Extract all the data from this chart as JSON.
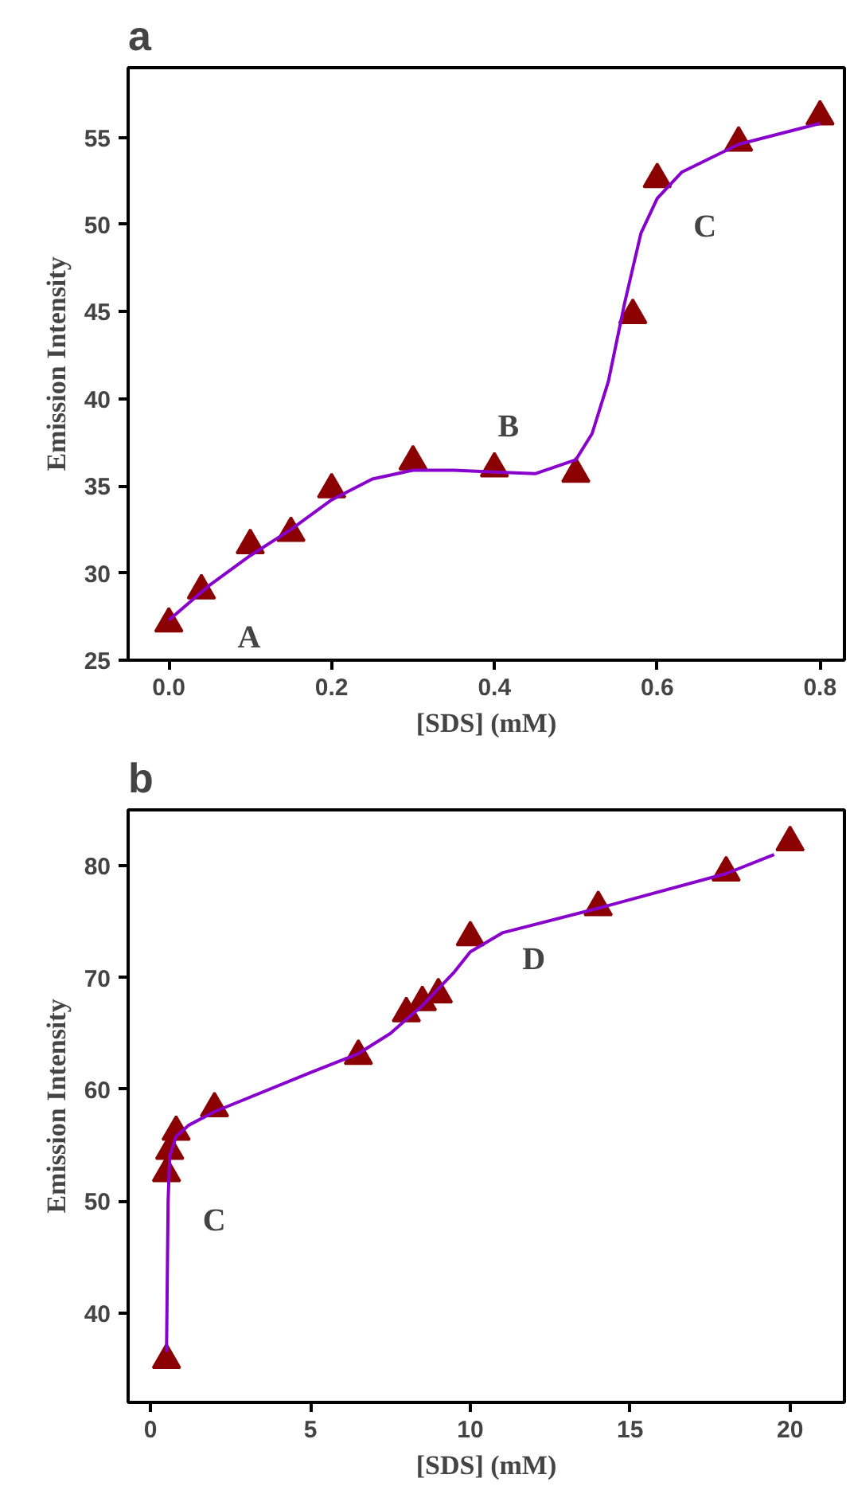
{
  "chart_data": [
    {
      "type": "scatter",
      "title": "a",
      "xlabel": "[SDS] (mM)",
      "ylabel": "Emission Intensity",
      "xlim": [
        -0.05,
        0.83
      ],
      "ylim": [
        25,
        59
      ],
      "xticks": [
        {
          "value": 0,
          "label": "0.0"
        },
        0.2,
        0.4,
        0.6,
        0.8
      ],
      "yticks": [
        25,
        30,
        35,
        40,
        45,
        50,
        55
      ],
      "grid": false,
      "series": [
        {
          "marker": "triangle",
          "color": "#8b0000",
          "x": [
            0,
            0.04,
            0.1,
            0.15,
            0.2,
            0.3,
            0.4,
            0.5,
            0.57,
            0.6,
            0.7,
            0.8
          ],
          "values": [
            27.1,
            29.0,
            31.6,
            32.3,
            34.8,
            36.4,
            36.0,
            35.7,
            44.8,
            52.6,
            54.7,
            56.2
          ]
        },
        {
          "type": "line",
          "marker": "none",
          "color": "#8800cc",
          "x": [
            0,
            0.05,
            0.1,
            0.15,
            0.2,
            0.25,
            0.3,
            0.35,
            0.4,
            0.45,
            0.5,
            0.52,
            0.54,
            0.56,
            0.58,
            0.6,
            0.63,
            0.7,
            0.8
          ],
          "values": [
            27.3,
            29.3,
            31.0,
            32.5,
            34.2,
            35.4,
            35.9,
            35.9,
            35.8,
            35.7,
            36.5,
            38,
            41,
            45.5,
            49.5,
            51.5,
            53,
            54.6,
            55.8
          ]
        }
      ],
      "annotations": [
        "A",
        "B",
        "C"
      ]
    },
    {
      "type": "scatter",
      "title": "b",
      "xlabel": "[SDS] (mM)",
      "ylabel": "Emission Intensity",
      "xlim": [
        -0.7,
        21.7
      ],
      "ylim": [
        32,
        85
      ],
      "xticks": [
        0,
        5,
        10,
        15,
        20
      ],
      "yticks": [
        40,
        50,
        60,
        70,
        80
      ],
      "grid": false,
      "series": [
        {
          "marker": "triangle",
          "color": "#8b0000",
          "x": [
            0.5,
            0.5,
            0.6,
            0.8,
            2,
            6.5,
            8,
            8.5,
            9,
            10,
            14,
            18,
            20
          ],
          "values": [
            35.8,
            52.5,
            54.5,
            56.2,
            58.3,
            63.0,
            66.8,
            67.8,
            68.5,
            73.6,
            76.3,
            79.4,
            82.1
          ]
        },
        {
          "type": "line",
          "marker": "none",
          "color": "#8800cc",
          "x": [
            0.5,
            0.55,
            0.6,
            0.8,
            1.2,
            2,
            5,
            6.5,
            7.5,
            8.5,
            9.5,
            10,
            11,
            14,
            18,
            19.5
          ],
          "values": [
            36.5,
            50,
            54,
            55.8,
            56.8,
            58,
            61.5,
            63.2,
            65,
            67.5,
            70.5,
            72.3,
            74,
            76.2,
            79.3,
            81
          ]
        }
      ],
      "annotations": [
        "C",
        "D"
      ]
    }
  ]
}
